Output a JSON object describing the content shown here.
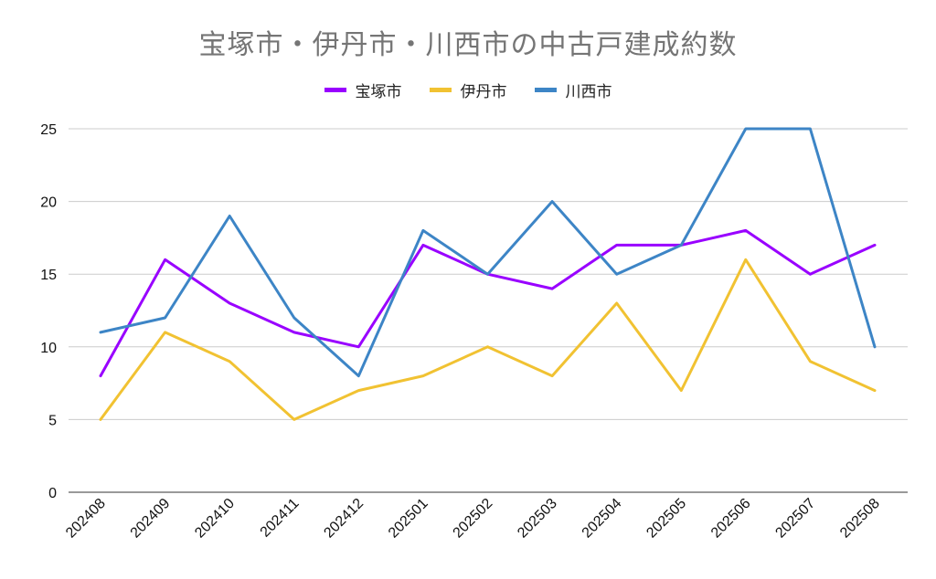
{
  "chart_data": {
    "type": "line",
    "title": "宝塚市・伊丹市・川西市の中古戸建成約数",
    "categories": [
      "202408",
      "202409",
      "202410",
      "202411",
      "202412",
      "202501",
      "202502",
      "202503",
      "202504",
      "202505",
      "202506",
      "202507",
      "202508"
    ],
    "series": [
      {
        "name": "宝塚市",
        "color": "#9900ff",
        "values": [
          8,
          16,
          13,
          11,
          10,
          17,
          15,
          14,
          17,
          17,
          18,
          15,
          17
        ]
      },
      {
        "name": "伊丹市",
        "color": "#f1c232",
        "values": [
          5,
          11,
          9,
          5,
          7,
          8,
          10,
          8,
          13,
          7,
          16,
          9,
          7
        ]
      },
      {
        "name": "川西市",
        "color": "#3d85c6",
        "values": [
          11,
          12,
          19,
          12,
          8,
          18,
          15,
          20,
          15,
          17,
          25,
          25,
          10
        ]
      }
    ],
    "ylim": [
      0,
      25
    ],
    "yticks": [
      0,
      5,
      10,
      15,
      20,
      25
    ],
    "grid": true,
    "legend_position": "top-center"
  }
}
